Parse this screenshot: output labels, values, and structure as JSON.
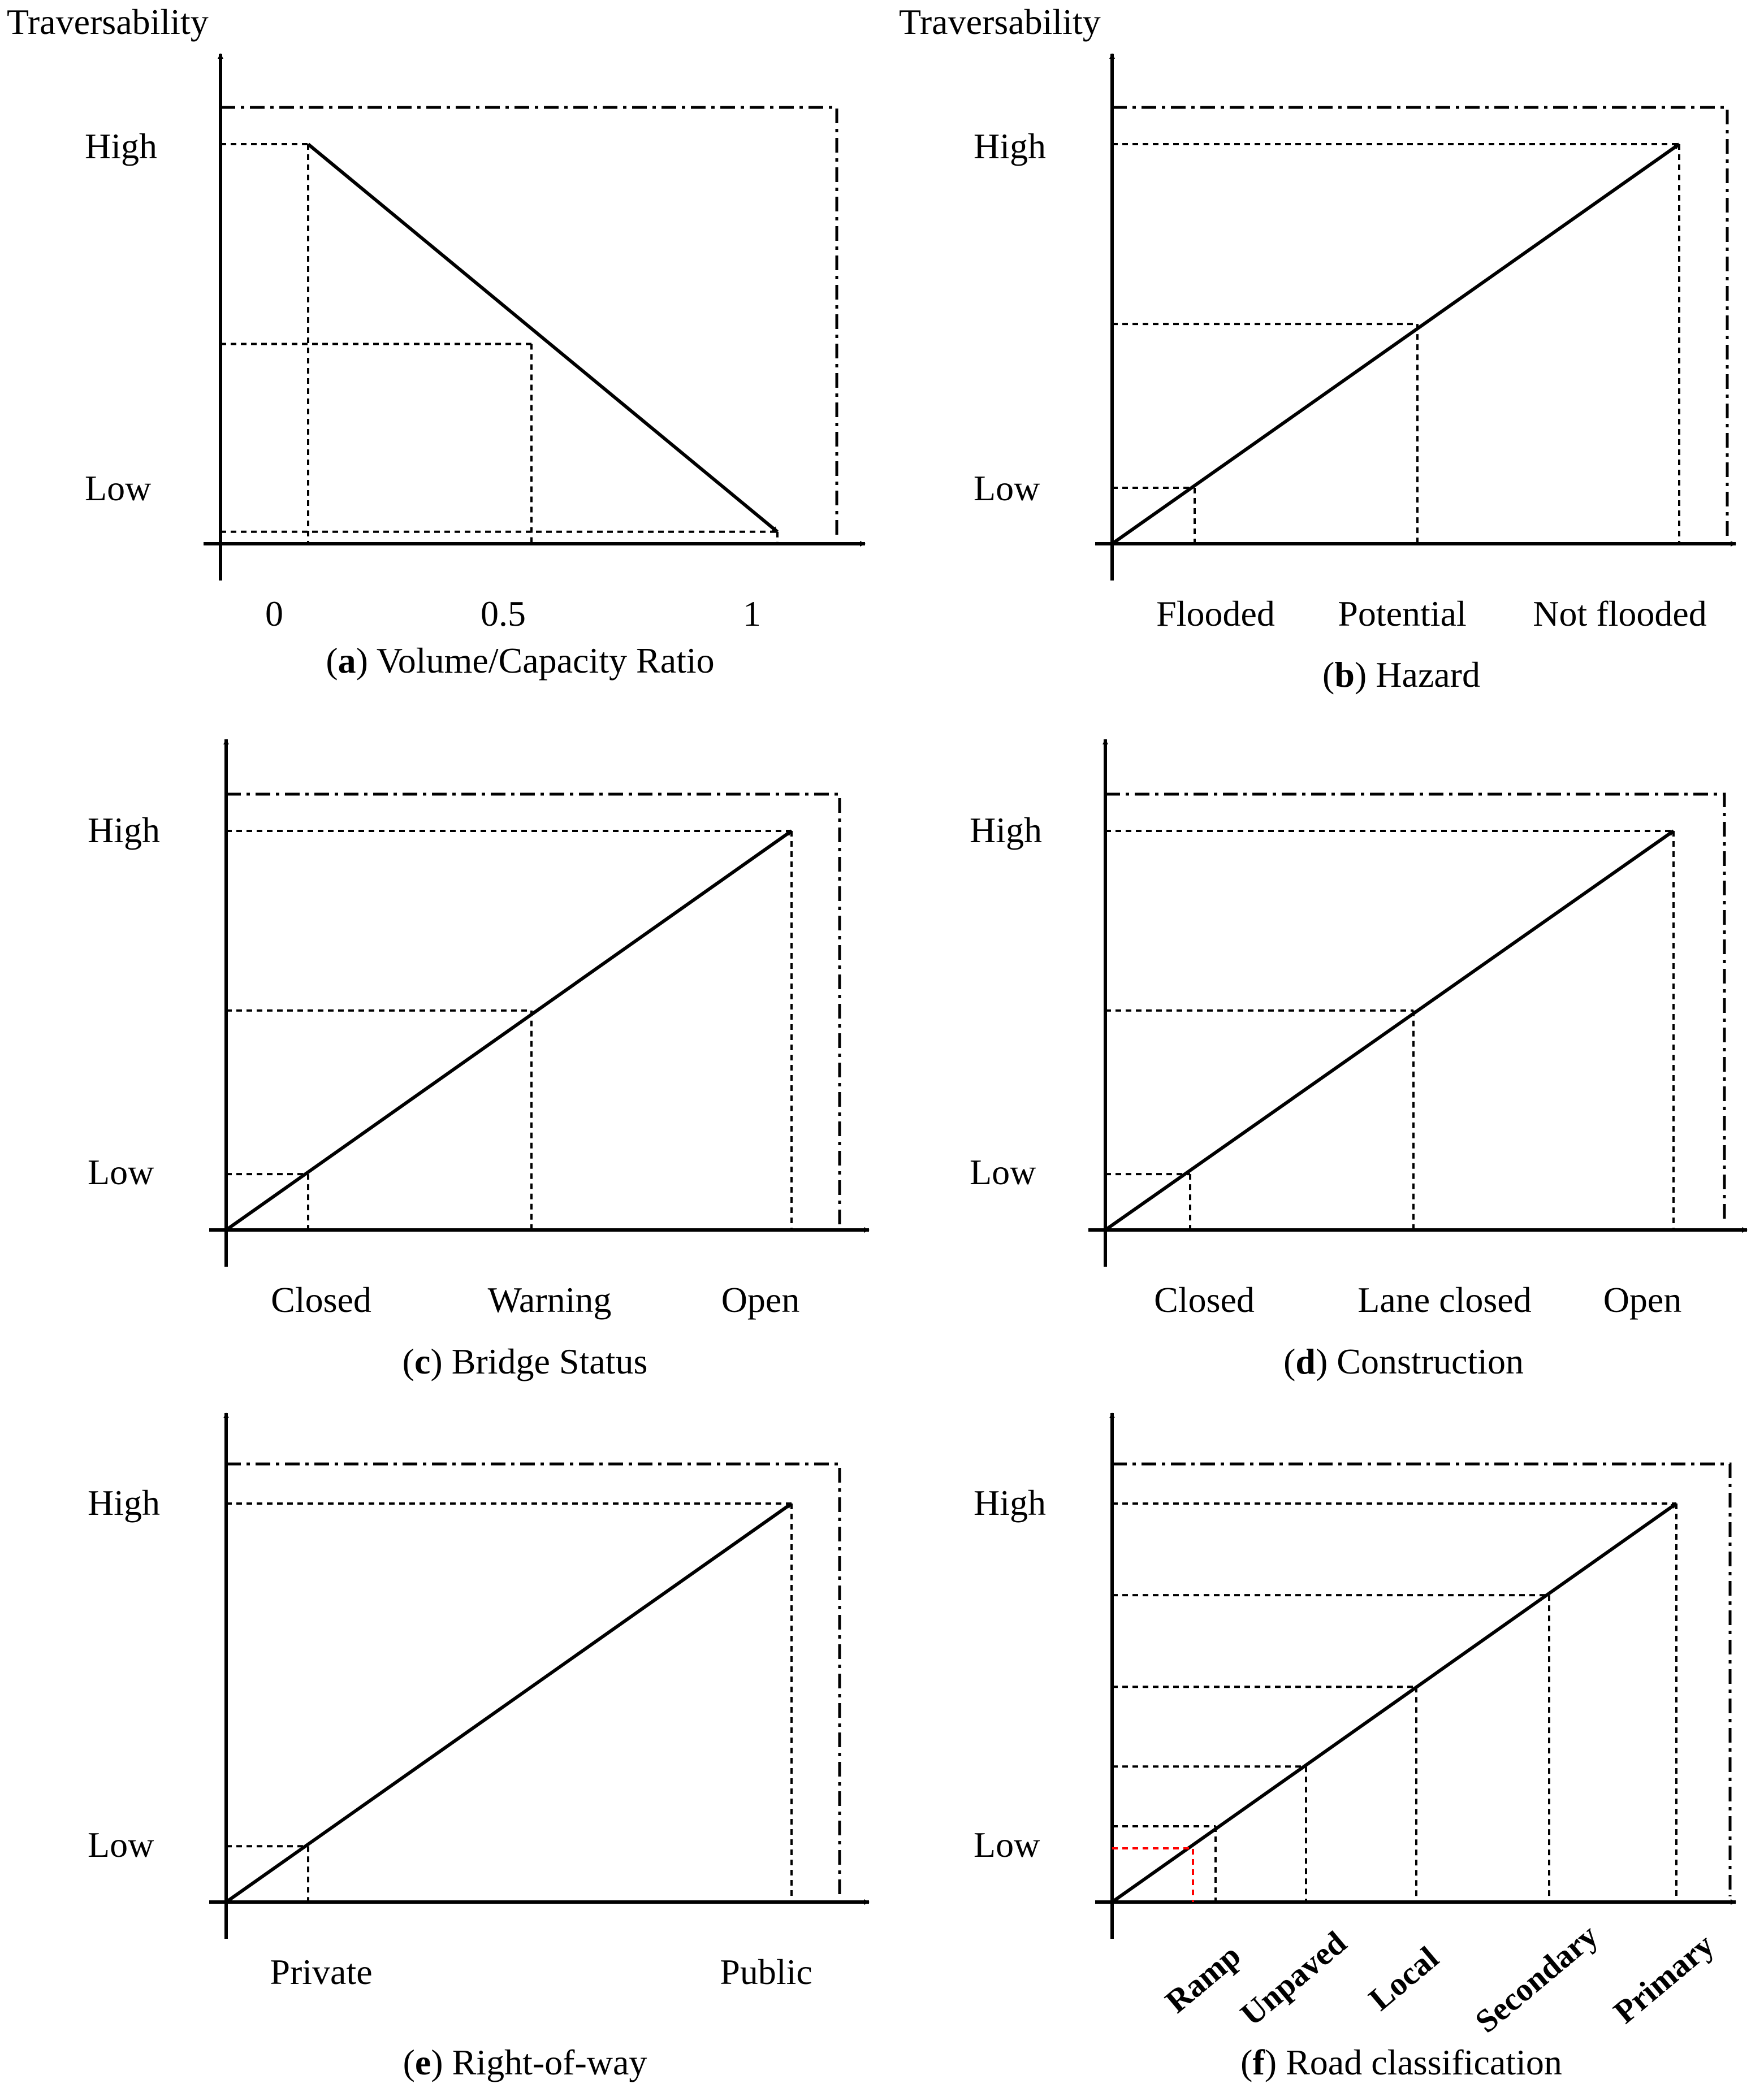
{
  "colors": {
    "ink": "#000000",
    "highlight": "#ff0000"
  },
  "chart_data": [
    {
      "type": "line",
      "caption_letter": "a",
      "caption_text": "Volume/Capacity Ratio",
      "ylabel": "Traversability",
      "y_levels": [
        "High",
        "Low"
      ],
      "x_ticks": [
        "0",
        "0.5",
        "1"
      ],
      "trend": "decreasing",
      "points": [
        {
          "x": 0,
          "y": 1.0
        },
        {
          "x": 0.5,
          "y": 0.5
        },
        {
          "x": 1,
          "y": 0.03
        }
      ]
    },
    {
      "type": "line",
      "caption_letter": "b",
      "caption_text": "Hazard",
      "ylabel": "Traversability",
      "y_levels": [
        "High",
        "Low"
      ],
      "categories": [
        "Flooded",
        "Potential",
        "Not flooded"
      ],
      "trend": "increasing",
      "points": [
        {
          "x": "Flooded",
          "y": 0.14
        },
        {
          "x": "Potential",
          "y": 0.55
        },
        {
          "x": "Not flooded",
          "y": 1.0
        }
      ]
    },
    {
      "type": "line",
      "caption_letter": "c",
      "caption_text": "Bridge Status",
      "ylabel": "",
      "y_levels": [
        "High",
        "Low"
      ],
      "categories": [
        "Closed",
        "Warning",
        "Open"
      ],
      "trend": "increasing",
      "points": [
        {
          "x": "Closed",
          "y": 0.14
        },
        {
          "x": "Warning",
          "y": 0.55
        },
        {
          "x": "Open",
          "y": 1.0
        }
      ]
    },
    {
      "type": "line",
      "caption_letter": "d",
      "caption_text": "Construction",
      "ylabel": "",
      "y_levels": [
        "High",
        "Low"
      ],
      "categories": [
        "Closed",
        "Lane closed",
        "Open"
      ],
      "trend": "increasing",
      "points": [
        {
          "x": "Closed",
          "y": 0.14
        },
        {
          "x": "Lane closed",
          "y": 0.55
        },
        {
          "x": "Open",
          "y": 1.0
        }
      ]
    },
    {
      "type": "line",
      "caption_letter": "e",
      "caption_text": "Right-of-way",
      "ylabel": "",
      "y_levels": [
        "High",
        "Low"
      ],
      "categories": [
        "Private",
        "Public"
      ],
      "trend": "increasing",
      "points": [
        {
          "x": "Private",
          "y": 0.14
        },
        {
          "x": "Public",
          "y": 1.0
        }
      ]
    },
    {
      "type": "line",
      "caption_letter": "f",
      "caption_text": "Road classification",
      "ylabel": "",
      "y_levels": [
        "High",
        "Low"
      ],
      "categories": [
        "Ramp",
        "Unpaved",
        "Local",
        "Secondary",
        "Primary"
      ],
      "trend": "increasing",
      "highlighted_category": "Ramp",
      "points": [
        {
          "x": "Ramp",
          "y": 0.19
        },
        {
          "x": "Unpaved",
          "y": 0.34
        },
        {
          "x": "Local",
          "y": 0.54
        },
        {
          "x": "Secondary",
          "y": 0.77
        },
        {
          "x": "Primary",
          "y": 1.0
        }
      ]
    }
  ]
}
